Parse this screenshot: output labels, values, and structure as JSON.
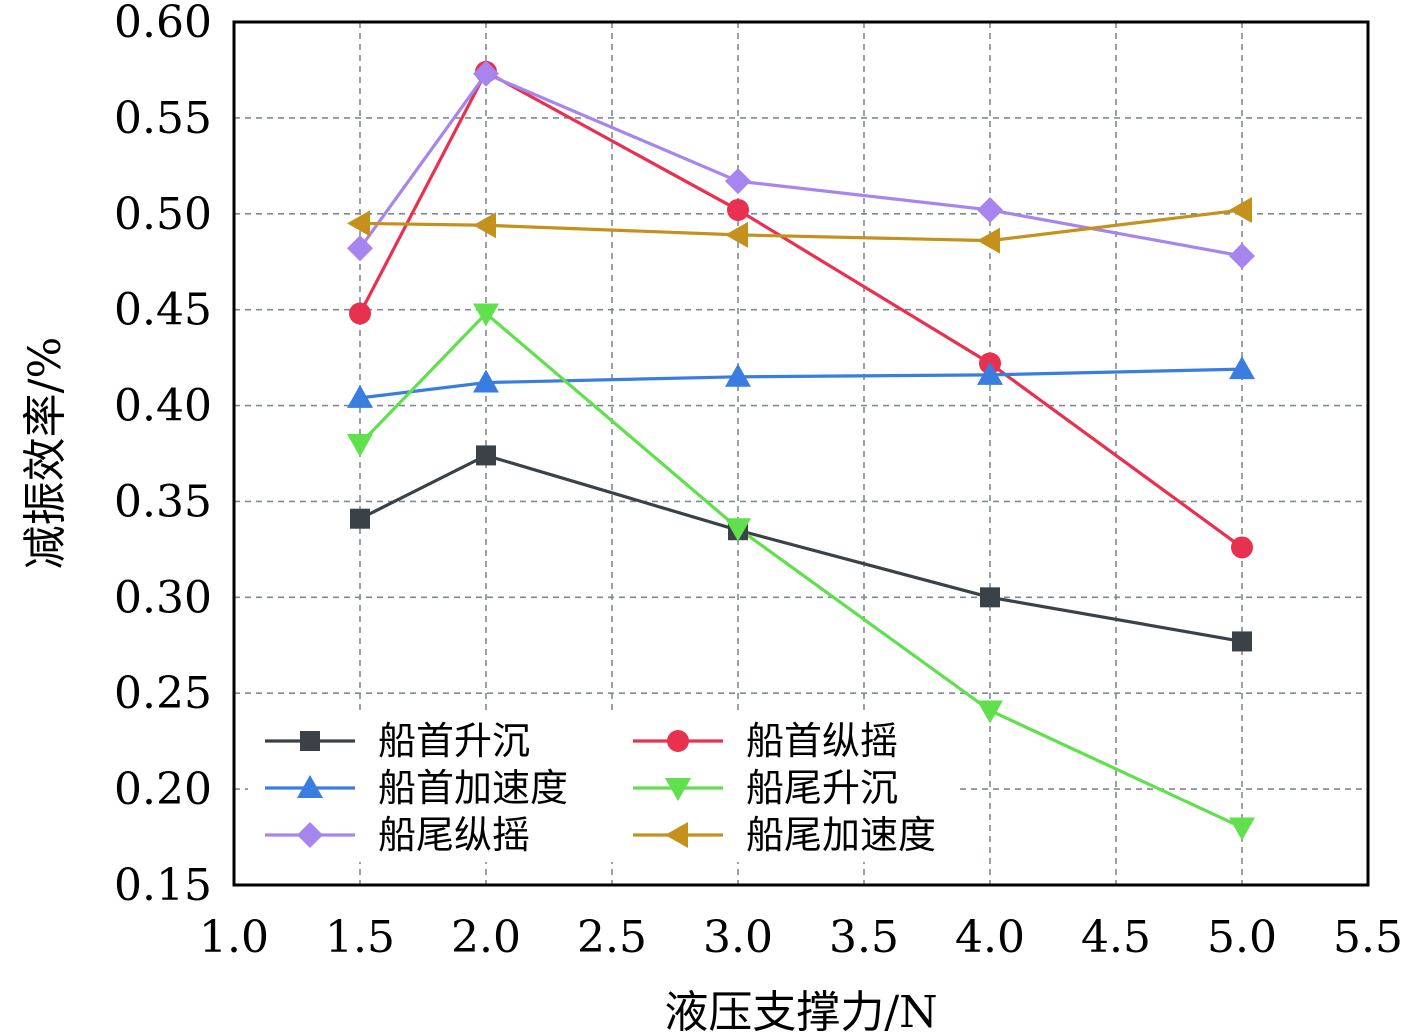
{
  "chart_data": {
    "type": "line",
    "title": "",
    "xlabel": "液压支撑力/N",
    "ylabel": "减振效率/%",
    "xlim": [
      1.0,
      5.5
    ],
    "ylim": [
      0.15,
      0.6
    ],
    "xticks": [
      "1.0",
      "1.5",
      "2.0",
      "2.5",
      "3.0",
      "3.5",
      "4.0",
      "4.5",
      "5.0",
      "5.5"
    ],
    "yticks": [
      "0.15",
      "0.20",
      "0.25",
      "0.30",
      "0.35",
      "0.40",
      "0.45",
      "0.50",
      "0.55",
      "0.60"
    ],
    "grid": true,
    "legend_position": "bottom-left",
    "x": [
      1.5,
      2.0,
      3.0,
      4.0,
      5.0
    ],
    "series": [
      {
        "name": "船首升沉",
        "marker": "square",
        "color": "#3a4248",
        "values": [
          0.341,
          0.374,
          0.335,
          0.3,
          0.277
        ]
      },
      {
        "name": "船首纵摇",
        "marker": "circle",
        "color": "#e8304f",
        "values": [
          0.448,
          0.574,
          0.502,
          0.422,
          0.326
        ]
      },
      {
        "name": "船首加速度",
        "marker": "triangle-up",
        "color": "#3a7de0",
        "values": [
          0.404,
          0.412,
          0.415,
          0.416,
          0.419
        ]
      },
      {
        "name": "船尾升沉",
        "marker": "triangle-down",
        "color": "#5fe04c",
        "values": [
          0.38,
          0.448,
          0.336,
          0.241,
          0.18
        ]
      },
      {
        "name": "船尾纵摇",
        "marker": "diamond",
        "color": "#a686ee",
        "values": [
          0.482,
          0.573,
          0.517,
          0.502,
          0.478
        ]
      },
      {
        "name": "船尾加速度",
        "marker": "triangle-left",
        "color": "#c4911c",
        "values": [
          0.495,
          0.494,
          0.489,
          0.486,
          0.502
        ]
      }
    ]
  }
}
